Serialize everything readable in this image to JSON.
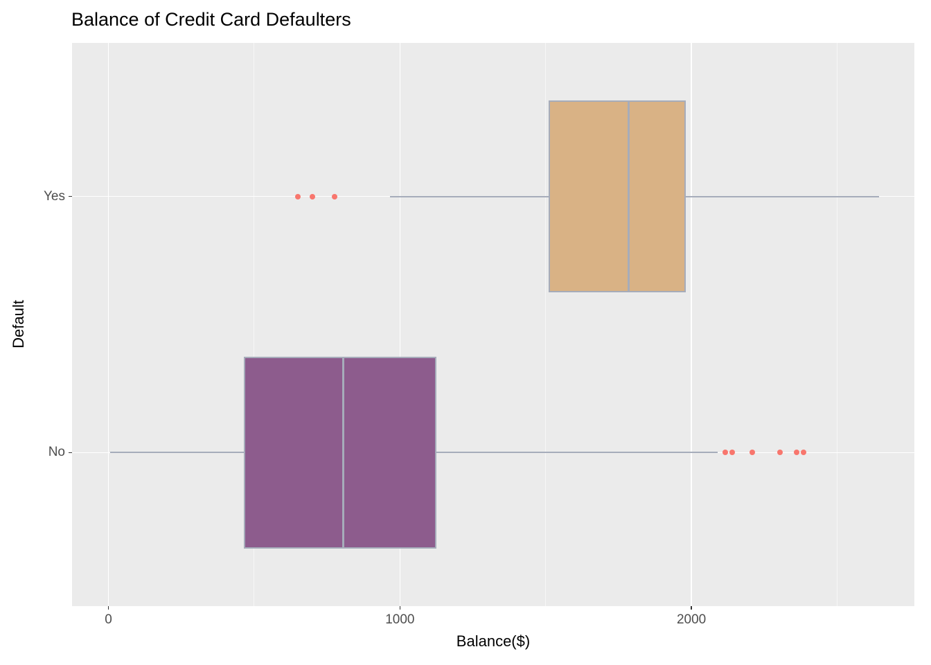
{
  "chart_data": {
    "type": "boxplot",
    "orientation": "horizontal",
    "title": "Balance of Credit Card Defaulters",
    "xlabel": "Balance($)",
    "ylabel": "Default",
    "categories": [
      "Yes",
      "No"
    ],
    "xlim": [
      -125,
      2765
    ],
    "x_ticks": [
      0,
      1000,
      2000
    ],
    "x_minor_ticks": [
      500,
      1500,
      2500
    ],
    "grid": true,
    "legend": "none",
    "series": [
      {
        "category": "Yes",
        "whisker_low": 965,
        "q1": 1510,
        "median": 1785,
        "q3": 1980,
        "whisker_high": 2645,
        "outliers": [
          650,
          700,
          775
        ],
        "fill": "#D9B285"
      },
      {
        "category": "No",
        "whisker_low": 5,
        "q1": 465,
        "median": 805,
        "q3": 1125,
        "whisker_high": 2090,
        "outliers": [
          2115,
          2140,
          2210,
          2305,
          2360,
          2385
        ],
        "fill": "#8D5C8D"
      }
    ],
    "style": {
      "panel_bg": "#EBEBEB",
      "grid_major": "#FFFFFF",
      "grid_minor": "#F6F6F6",
      "box_border": "#A6ACBA",
      "median_line": "#A6ACBA",
      "outlier_color": "#F8766D",
      "tick_label_color": "#4D4D4D",
      "text_color": "#000000"
    }
  }
}
